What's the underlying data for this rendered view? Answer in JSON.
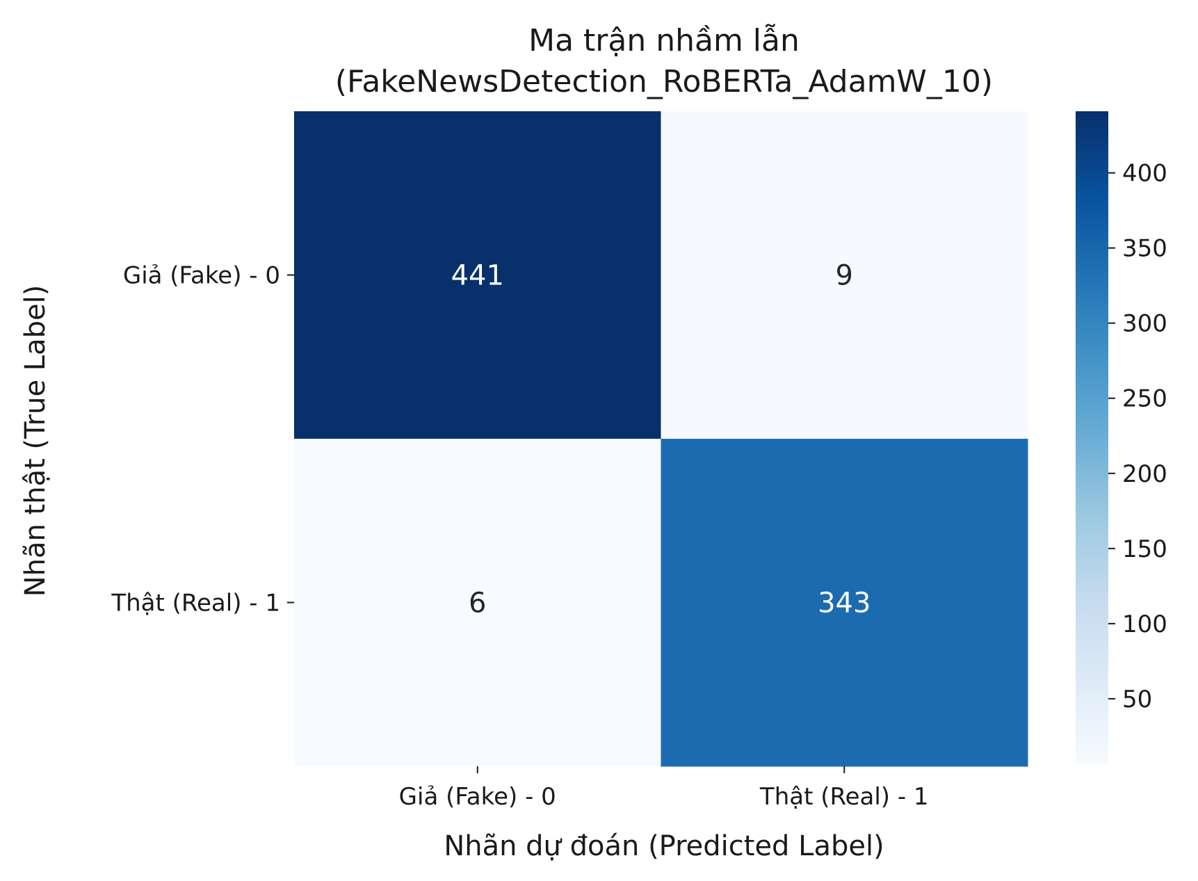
{
  "chart_data": {
    "type": "heatmap",
    "title_line1": "Ma trận nhầm lẫn",
    "title_line2": "(FakeNewsDetection_RoBERTa_AdamW_10)",
    "xlabel": "Nhãn dự đoán (Predicted Label)",
    "ylabel": "Nhãn thật (True Label)",
    "x_categories": [
      "Giả (Fake) - 0",
      "Thật (Real) - 1"
    ],
    "y_categories": [
      "Giả (Fake) - 0",
      "Thật (Real) - 1"
    ],
    "values": [
      [
        441,
        9
      ],
      [
        6,
        343
      ]
    ],
    "colormap": "Blues",
    "colorbar": {
      "min": 6,
      "max": 441,
      "ticks": [
        "50",
        "100",
        "150",
        "200",
        "250",
        "300",
        "350",
        "400"
      ]
    }
  }
}
